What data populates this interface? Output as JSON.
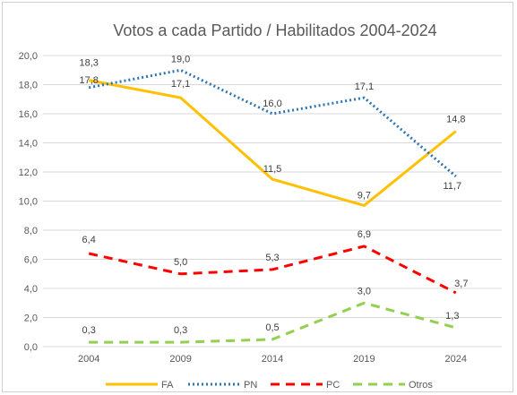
{
  "chart_data": {
    "type": "line",
    "title": "Votos a cada Partido / Habilitados 2004-2024",
    "xlabel": "",
    "ylabel": "",
    "categories": [
      "2004",
      "2009",
      "2014",
      "2019",
      "2024"
    ],
    "ylim": [
      0,
      20
    ],
    "yticks": [
      "0,0",
      "2,0",
      "4,0",
      "6,0",
      "8,0",
      "10,0",
      "12,0",
      "14,0",
      "16,0",
      "18,0",
      "20,0"
    ],
    "grid": true,
    "legend_position": "bottom",
    "series": [
      {
        "name": "FA",
        "values": [
          18.3,
          17.1,
          11.5,
          9.7,
          14.8
        ],
        "labels": [
          "18,3",
          "17,1",
          "11,5",
          "9,7",
          "14,8"
        ],
        "color": "#FFC000",
        "style": "solid"
      },
      {
        "name": "PN",
        "values": [
          17.8,
          19.0,
          16.0,
          17.1,
          11.7
        ],
        "labels": [
          "17,8",
          "19,0",
          "16,0",
          "17,1",
          "11,7"
        ],
        "color": "#2E75B6",
        "style": "dotted"
      },
      {
        "name": "PC",
        "values": [
          6.4,
          5.0,
          5.3,
          6.9,
          3.7
        ],
        "labels": [
          "6,4",
          "5,0",
          "5,3",
          "6,9",
          "3,7"
        ],
        "color": "#FF0000",
        "style": "dashed"
      },
      {
        "name": "Otros",
        "values": [
          0.3,
          0.3,
          0.5,
          3.0,
          1.3
        ],
        "labels": [
          "0,3",
          "0,3",
          "0,5",
          "3,0",
          "1,3"
        ],
        "color": "#92D050",
        "style": "dashed"
      }
    ]
  }
}
